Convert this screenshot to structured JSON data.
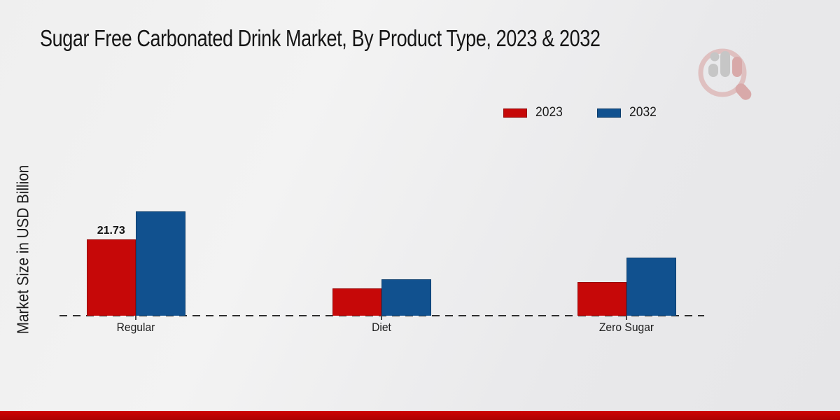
{
  "page": {
    "title": "Sugar Free Carbonated Drink Market, By Product Type, 2023 & 2032",
    "ylabel": "Market Size in USD Billion"
  },
  "legend": {
    "items": [
      {
        "label": "2023",
        "color": "#c60808"
      },
      {
        "label": "2032",
        "color": "#11518f"
      }
    ]
  },
  "chart_data": {
    "type": "bar",
    "title": "Sugar Free Carbonated Drink Market, By Product Type, 2023 & 2032",
    "xlabel": "",
    "ylabel": "Market Size in USD Billion",
    "categories": [
      "Regular",
      "Diet",
      "Zero Sugar"
    ],
    "series": [
      {
        "name": "2023",
        "color": "#c60808",
        "values": [
          21.73,
          7.8,
          9.6
        ]
      },
      {
        "name": "2032",
        "color": "#11518f",
        "values": [
          29.7,
          10.4,
          16.5
        ]
      }
    ],
    "annotations": [
      {
        "category": "Regular",
        "series": "2023",
        "text": "21.73"
      }
    ],
    "ylim": [
      0,
      32
    ],
    "grid": false,
    "y_axis_ticks_visible": false,
    "baseline_style": "dashed",
    "legend_position": "top-right"
  },
  "branding": {
    "watermark_icon": "magnifier-bar-chart-logo",
    "footer_bar_color": "#c00101"
  }
}
